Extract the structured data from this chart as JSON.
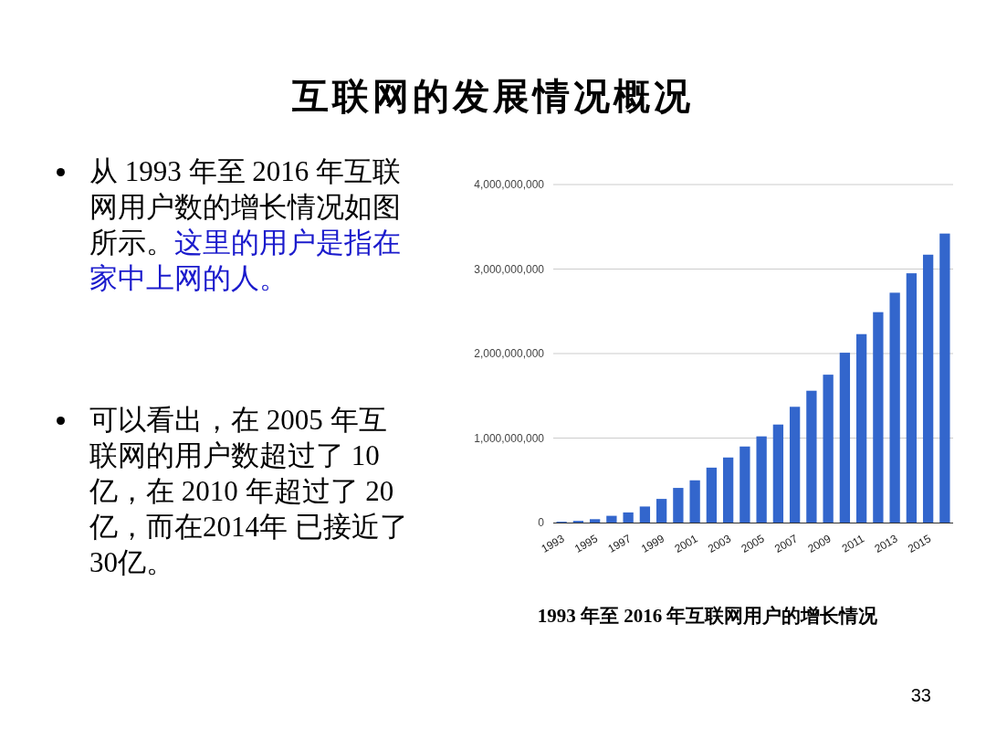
{
  "chart_data": {
    "type": "bar",
    "title": "互联网的发展情况概况",
    "subtitle": "1993 年至 2016 年互联网用户的增长情况",
    "annotations": [
      "从 1993 年至 2016 年互联网用户数的增长情况如图所示。",
      "这里的用户是指在家中上网的人。",
      "可以看出，在 2005 年互联网的用户数超过了 10 亿，在 2010 年超过了 20 亿，而在2014年 已接近了 30亿。",
      "33"
    ],
    "categories": [
      "1993",
      null,
      "1995",
      null,
      "1997",
      null,
      "1999",
      null,
      "2001",
      null,
      "2003",
      null,
      "2005",
      null,
      "2007",
      null,
      "2009",
      null,
      "2011",
      null,
      "2013",
      null,
      "2015",
      null
    ],
    "values": [
      10000000,
      20000000,
      40000000,
      80000000,
      120000000,
      190000000,
      280000000,
      410000000,
      500000000,
      650000000,
      770000000,
      900000000,
      1020000000,
      1160000000,
      1370000000,
      1560000000,
      1750000000,
      2010000000,
      2230000000,
      2490000000,
      2720000000,
      2950000000,
      3170000000,
      3420000000
    ],
    "color": "#3366cc",
    "ylim": [
      0,
      4000000000
    ],
    "yticks": [
      {
        "value": 0,
        "label": "0"
      },
      {
        "value": 1000000000,
        "label": "1,000,000,000"
      },
      {
        "value": 2000000000,
        "label": "2,000,000,000"
      },
      {
        "value": 3000000000,
        "label": "3,000,000,000"
      },
      {
        "value": 4000000000,
        "label": "4,000,000,000"
      }
    ],
    "grid": "y"
  }
}
